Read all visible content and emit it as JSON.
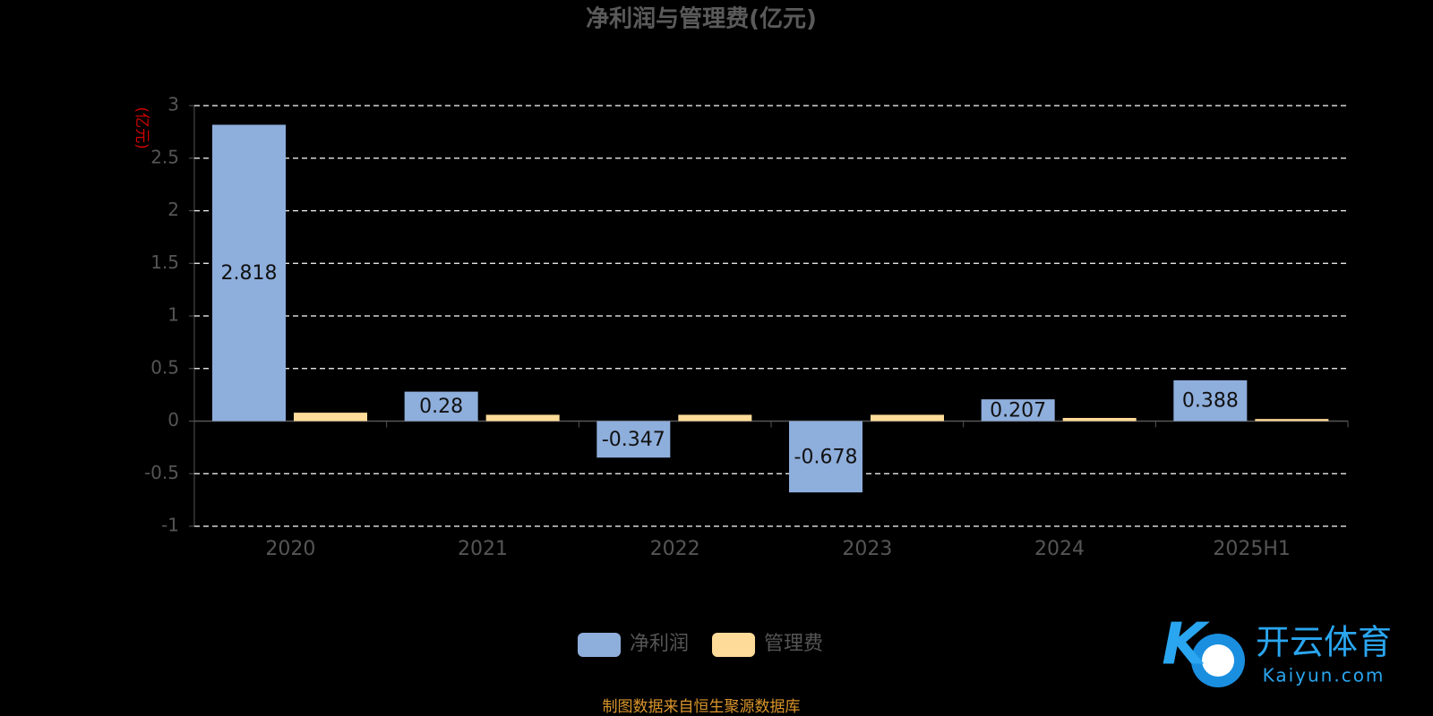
{
  "chart_data": {
    "type": "bar",
    "title": "净利润与管理费(亿元)",
    "y_label": "(亿元)",
    "categories": [
      "2020",
      "2021",
      "2022",
      "2023",
      "2024",
      "2025H1"
    ],
    "series": [
      {
        "name": "净利润",
        "color": "#8eaedc",
        "values": [
          2.818,
          0.28,
          -0.347,
          -0.678,
          0.207,
          0.388
        ],
        "show_labels": true
      },
      {
        "name": "管理费",
        "color": "#ffdb99",
        "values": [
          0.08,
          0.06,
          0.06,
          0.06,
          0.03,
          0.02
        ],
        "show_labels": false
      }
    ],
    "ylim": [
      -1,
      3
    ],
    "yticks": [
      -1,
      -0.5,
      0,
      0.5,
      1,
      1.5,
      2,
      2.5,
      3
    ],
    "grid": true,
    "legend": "bottom",
    "footer": "制图数据来自恒生聚源数据库",
    "watermark": {
      "name": "开云体育",
      "url": "Kaiyun.com"
    }
  }
}
